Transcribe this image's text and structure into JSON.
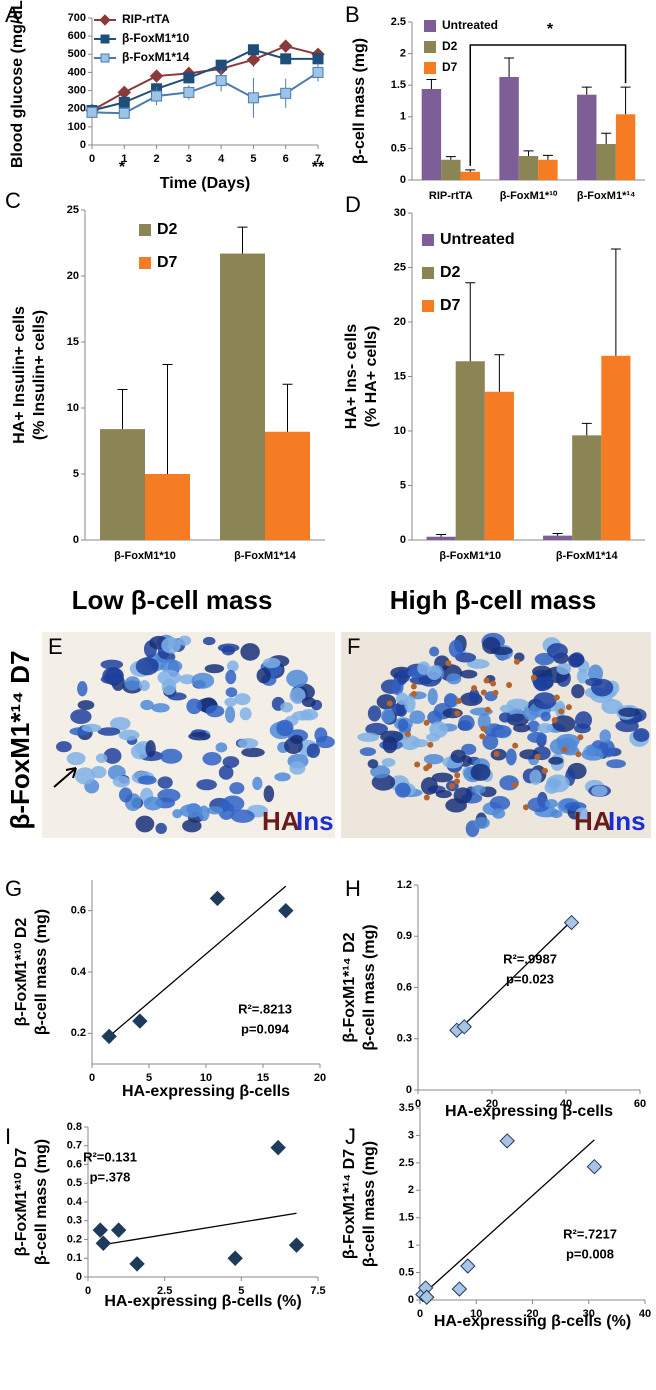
{
  "chart_data": [
    {
      "type": "line",
      "panel": "A",
      "ylabel": "Blood glucose (mg/dL)",
      "xlabel": "Time (Days)",
      "x": [
        0,
        1,
        2,
        3,
        4,
        5,
        6,
        7
      ],
      "xlim": [
        0,
        7
      ],
      "xticks": [
        0,
        1,
        2,
        3,
        4,
        5,
        6,
        7
      ],
      "ylim": [
        0,
        700
      ],
      "yticks": [
        0,
        100,
        200,
        300,
        400,
        500,
        600,
        700
      ],
      "series": [
        {
          "name": "RIP-rtTA",
          "color": "#8b3a3a",
          "marker": "diamond",
          "values": [
            190,
            290,
            380,
            395,
            420,
            470,
            545,
            500
          ],
          "errors": [
            20,
            30,
            25,
            25,
            30,
            40,
            30,
            25
          ]
        },
        {
          "name": "β-FoxM1*10",
          "color": "#1f4e79",
          "marker": "square",
          "values": [
            190,
            235,
            310,
            370,
            440,
            525,
            475,
            475
          ],
          "errors": [
            20,
            40,
            30,
            30,
            20,
            25,
            30,
            30
          ]
        },
        {
          "name": "β-FoxM1*14",
          "color": "#9dc3e6",
          "marker": "square",
          "values": [
            180,
            175,
            270,
            290,
            355,
            260,
            285,
            400
          ],
          "errors": [
            20,
            30,
            50,
            40,
            60,
            110,
            80,
            50
          ]
        }
      ],
      "annotations": [
        "*",
        "**"
      ]
    },
    {
      "type": "bar",
      "panel": "B",
      "ylabel": "β-cell mass (mg)",
      "categories": [
        "RIP-rtTA",
        "β-FoxM1*¹⁰",
        "β-FoxM1*¹⁴"
      ],
      "ylim": [
        0,
        2.5
      ],
      "yticks": [
        0,
        0.5,
        1,
        1.5,
        2,
        2.5
      ],
      "series": [
        {
          "name": "Untreated",
          "color": "#7d5e96",
          "values": [
            1.44,
            1.63,
            1.35
          ],
          "errors": [
            0.15,
            0.3,
            0.12
          ]
        },
        {
          "name": "D2",
          "color": "#8b8455",
          "values": [
            0.32,
            0.38,
            0.57
          ],
          "errors": [
            0.05,
            0.08,
            0.17
          ]
        },
        {
          "name": "D7",
          "color": "#f57c22",
          "values": [
            0.13,
            0.32,
            1.04
          ],
          "errors": [
            0.03,
            0.07,
            0.43
          ]
        }
      ],
      "annotations": [
        "*"
      ]
    },
    {
      "type": "bar",
      "panel": "C",
      "ylabel": [
        "HA+ Insulin+ cells",
        "(% Insulin+ cells)"
      ],
      "categories": [
        "β-FoxM1*10",
        "β-FoxM1*14"
      ],
      "ylim": [
        0,
        25
      ],
      "yticks": [
        0,
        5,
        10,
        15,
        20,
        25
      ],
      "series": [
        {
          "name": "D2",
          "color": "#8b8455",
          "values": [
            8.4,
            21.7
          ],
          "errors": [
            3.0,
            2.0
          ]
        },
        {
          "name": "D7",
          "color": "#f57c22",
          "values": [
            5.0,
            8.2
          ],
          "errors": [
            8.3,
            3.6
          ]
        }
      ]
    },
    {
      "type": "bar",
      "panel": "D",
      "ylabel": [
        "HA+ Ins- cells",
        "(% HA+ cells)"
      ],
      "categories": [
        "β-FoxM1*10",
        "β-FoxM1*14"
      ],
      "ylim": [
        0,
        30
      ],
      "yticks": [
        0,
        5,
        10,
        15,
        20,
        25,
        30
      ],
      "series": [
        {
          "name": "Untreated",
          "color": "#7d5e96",
          "values": [
            0.3,
            0.4
          ],
          "errors": [
            0.2,
            0.2
          ]
        },
        {
          "name": "D2",
          "color": "#8b8455",
          "values": [
            16.4,
            9.6
          ],
          "errors": [
            7.2,
            1.1
          ]
        },
        {
          "name": "D7",
          "color": "#f57c22",
          "values": [
            13.6,
            16.9
          ],
          "errors": [
            3.4,
            9.8
          ]
        }
      ]
    },
    {
      "type": "scatter",
      "panel": "G",
      "ylabel": [
        "β-FoxM1*¹⁰ D2",
        "β-cell mass (mg)"
      ],
      "xlabel": "HA-expressing β-cells",
      "xlim": [
        0,
        20
      ],
      "xticks": [
        0,
        5,
        10,
        15,
        20
      ],
      "ylim": [
        0.1,
        0.7
      ],
      "yticks": [
        0.2,
        0.4,
        0.6
      ],
      "color": "#1f3b5c",
      "x": [
        1.5,
        4.2,
        11,
        17
      ],
      "y": [
        0.19,
        0.24,
        0.64,
        0.6
      ],
      "fit": {
        "x": [
          1.5,
          17
        ],
        "y": [
          0.19,
          0.68
        ]
      },
      "annotations": [
        "R²=.8213",
        "p=0.094"
      ]
    },
    {
      "type": "scatter",
      "panel": "H",
      "ylabel": [
        "β-FoxM1*¹⁴ D2",
        "β-cell mass (mg)"
      ],
      "xlabel": "HA-expressing β-cells",
      "xlim": [
        0,
        60
      ],
      "xticks": [
        0,
        20,
        40,
        60
      ],
      "ylim": [
        0,
        1.2
      ],
      "yticks": [
        0,
        0.3,
        0.6,
        0.9,
        1.2
      ],
      "color": "#a9c4e4",
      "x": [
        10.5,
        12.5,
        41.5
      ],
      "y": [
        0.35,
        0.37,
        0.98
      ],
      "fit": {
        "x": [
          10,
          41.5
        ],
        "y": [
          0.33,
          0.99
        ]
      },
      "annotations": [
        "R²=.9987",
        "p=0.023"
      ]
    },
    {
      "type": "scatter",
      "panel": "I",
      "ylabel": [
        "β-FoxM1*¹⁰ D7",
        "β-cell mass (mg)"
      ],
      "xlabel": "HA-expressing β-cells (%)",
      "xlim": [
        0,
        7.5
      ],
      "xticks": [
        0,
        2.5,
        5,
        7.5
      ],
      "ylim": [
        0,
        0.8
      ],
      "yticks": [
        0,
        0.1,
        0.2,
        0.3,
        0.4,
        0.5,
        0.6,
        0.7,
        0.8
      ],
      "color": "#1f3b5c",
      "x": [
        0.4,
        0.5,
        1.0,
        1.6,
        4.8,
        6.2,
        6.8
      ],
      "y": [
        0.25,
        0.18,
        0.25,
        0.07,
        0.1,
        0.69,
        0.17
      ],
      "fit": {
        "x": [
          0.4,
          6.8
        ],
        "y": [
          0.17,
          0.34
        ]
      },
      "annotations": [
        "R²=0.131",
        "p=.378"
      ]
    },
    {
      "type": "scatter",
      "panel": "J",
      "ylabel": [
        "β-FoxM1*¹⁴ D7",
        "β-cell mass (mg)"
      ],
      "xlabel": "HA-expressing β-cells (%)",
      "xlim": [
        0,
        40
      ],
      "xticks": [
        0,
        10,
        20,
        30,
        40
      ],
      "ylim": [
        0,
        3.5
      ],
      "yticks": [
        0,
        0.5,
        1,
        1.5,
        2,
        2.5,
        3,
        3.5
      ],
      "color": "#a9c4e4",
      "x": [
        0.5,
        1,
        1.2,
        7,
        8.5,
        15.5,
        31
      ],
      "y": [
        0.1,
        0.22,
        0.05,
        0.2,
        0.62,
        2.9,
        2.43
      ],
      "fit": {
        "x": [
          0.5,
          31
        ],
        "y": [
          0.1,
          2.92
        ]
      },
      "annotations": [
        "R²=.7217",
        "p=0.008"
      ]
    }
  ],
  "micrographs": {
    "side_label": "β-FoxM1*¹⁴ D7",
    "panels": [
      {
        "letter": "E",
        "title": "Low β-cell mass",
        "stain1": "HA",
        "stain2": "Ins"
      },
      {
        "letter": "F",
        "title": "High β-cell mass",
        "stain1": "HA",
        "stain2": "Ins"
      }
    ]
  }
}
